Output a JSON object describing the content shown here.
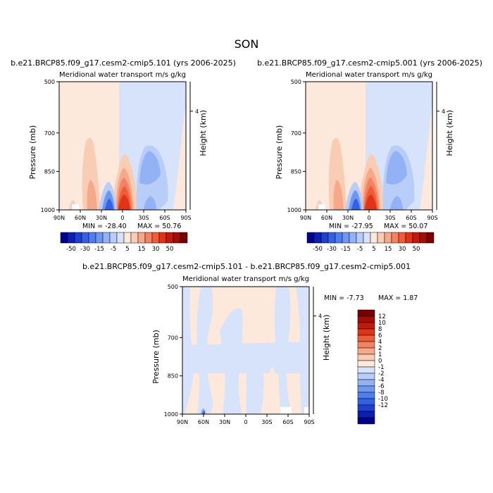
{
  "figure": {
    "season": "SON",
    "colors": {
      "neg": [
        "#00008b",
        "#0b1fb0",
        "#1e3fd0",
        "#3660e3",
        "#4f7eef",
        "#6e97f2",
        "#93b2f5",
        "#b8cdf8",
        "#d6e3fb"
      ],
      "zero": "#ffffff",
      "pos": [
        "#fde9dc",
        "#f9cdb4",
        "#f6a88a",
        "#f38261",
        "#ee5c3a",
        "#e03418",
        "#c21b0c",
        "#a00f06",
        "#7a0000"
      ]
    }
  },
  "chart_data": [
    {
      "type": "heatmap",
      "id": "case1",
      "title": "b.e21.BRCP85.f09_g17.cesm2-cmip5.101 (yrs 2006-2025)",
      "subtitle": "Meridional water transport",
      "units": "m/s g/kg",
      "ylabel": "Pressure (mb)",
      "ylabel_right": "Height (km)",
      "x_ticks": [
        "90N",
        "60N",
        "30N",
        "0",
        "30S",
        "60S",
        "90S"
      ],
      "y_ticks": [
        "500",
        "700",
        "850",
        "1000"
      ],
      "right_ticks": [
        "4"
      ],
      "min_label": "MIN = -28.40",
      "max_label": "MAX =  50.76",
      "levels": [
        -50,
        -40,
        -30,
        -20,
        -15,
        -10,
        -5,
        -2,
        2,
        5,
        10,
        15,
        20,
        30,
        40,
        50
      ],
      "colorbar_labels": [
        "-50",
        "-30",
        "-15",
        "-5",
        "5",
        "15",
        "30",
        "50"
      ]
    },
    {
      "type": "heatmap",
      "id": "case2",
      "title": "b.e21.BRCP85.f09_g17.cesm2-cmip5.001 (yrs 2006-2025)",
      "subtitle": "Meridional water transport",
      "units": "m/s g/kg",
      "ylabel": "Pressure (mb)",
      "ylabel_right": "Height (km)",
      "x_ticks": [
        "90N",
        "60N",
        "30N",
        "0",
        "30S",
        "60S",
        "90S"
      ],
      "y_ticks": [
        "500",
        "700",
        "850",
        "1000"
      ],
      "right_ticks": [
        "4"
      ],
      "min_label": "MIN = -27.95",
      "max_label": "MAX =  50.07",
      "levels": [
        -50,
        -40,
        -30,
        -20,
        -15,
        -10,
        -5,
        -2,
        2,
        5,
        10,
        15,
        20,
        30,
        40,
        50
      ],
      "colorbar_labels": [
        "-50",
        "-30",
        "-15",
        "-5",
        "5",
        "15",
        "30",
        "50"
      ]
    },
    {
      "type": "heatmap",
      "id": "diff",
      "title": "b.e21.BRCP85.f09_g17.cesm2-cmip5.101 - b.e21.BRCP85.f09_g17.cesm2-cmip5.001",
      "subtitle": "Meridional water transport",
      "units": "m/s g/kg",
      "ylabel": "Pressure (mb)",
      "ylabel_right": "Height (km)",
      "x_ticks": [
        "90N",
        "60N",
        "30N",
        "0",
        "30S",
        "60S",
        "90S"
      ],
      "y_ticks": [
        "500",
        "700",
        "850",
        "1000"
      ],
      "right_ticks": [
        "4"
      ],
      "min_label": "MIN =   -7.73",
      "max_label": "MAX =    1.87",
      "levels": [
        -12,
        -10,
        -8,
        -6,
        -4,
        -2,
        -1,
        0,
        1,
        2,
        4,
        6,
        8,
        10,
        12
      ],
      "colorbar_labels": [
        "12",
        "10",
        "8",
        "6",
        "4",
        "2",
        "1",
        "0",
        "-1",
        "-2",
        "-4",
        "-6",
        "-8",
        "-10",
        "-12"
      ]
    }
  ]
}
